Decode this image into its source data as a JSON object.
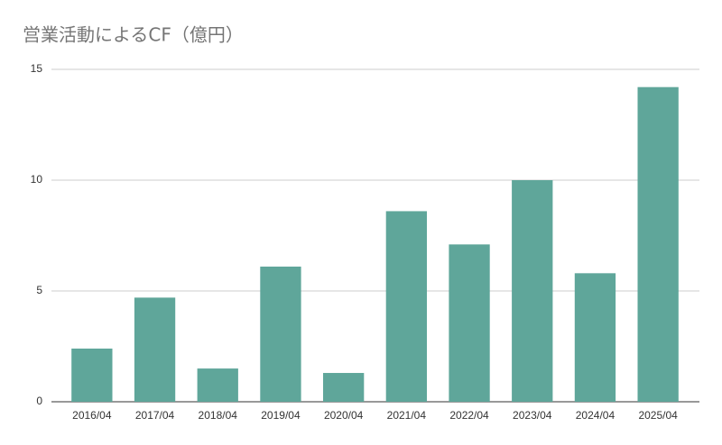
{
  "chart_data": {
    "type": "bar",
    "title": "営業活動によるCF（億円）",
    "categories": [
      "2016/04",
      "2017/04",
      "2018/04",
      "2019/04",
      "2020/04",
      "2021/04",
      "2022/04",
      "2023/04",
      "2024/04",
      "2025/04"
    ],
    "values": [
      2.4,
      4.7,
      1.5,
      6.1,
      1.3,
      8.6,
      7.1,
      10.0,
      5.8,
      14.2
    ],
    "color": "#5fa69a",
    "ylim": [
      0,
      15
    ],
    "yticks": [
      0,
      5,
      10,
      15
    ],
    "grid": true
  }
}
